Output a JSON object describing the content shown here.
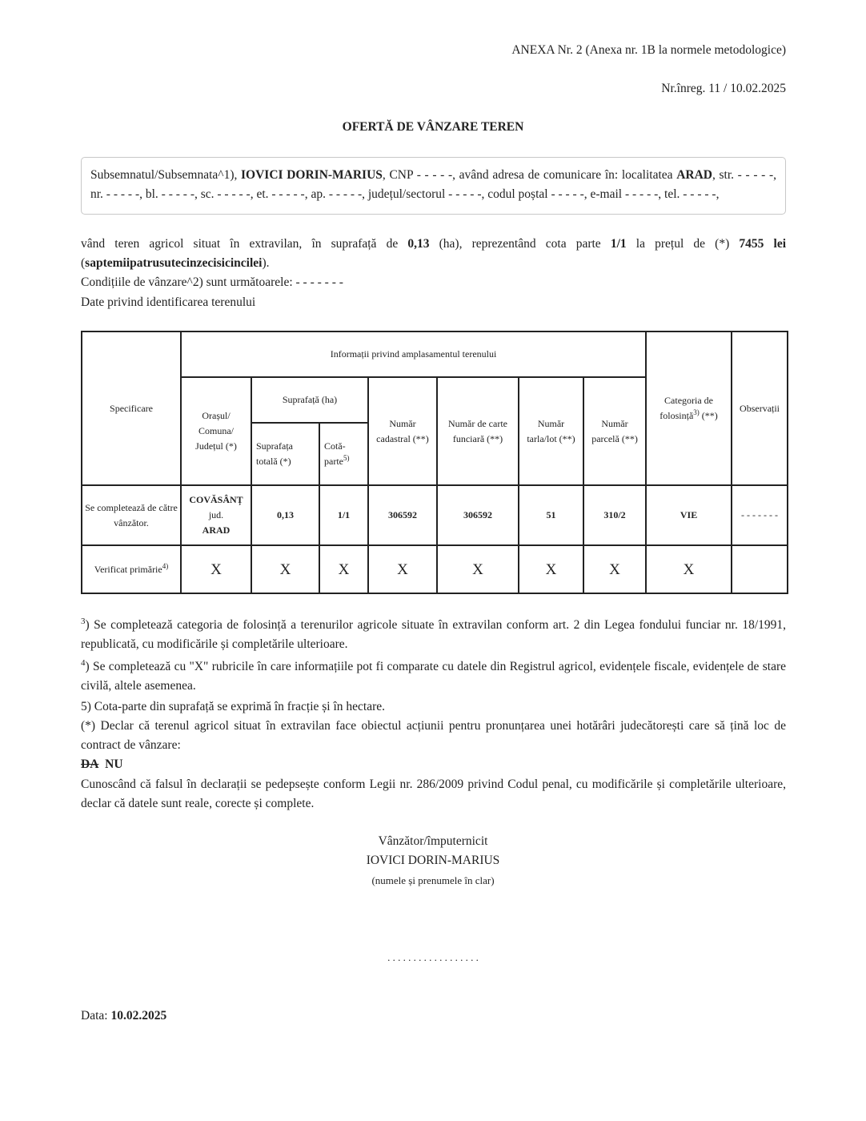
{
  "header": {
    "annex": "ANEXA Nr. 2 (Anexa nr. 1B la normele metodologice)",
    "registration": "Nr.înreg. 11 / 10.02.2025",
    "title": "OFERTĂ DE VÂNZARE TEREN"
  },
  "seller_box": {
    "t1": "Subsemnatul/Subsemnata^1), ",
    "name": "IOVICI DORIN-MARIUS",
    "t2": ", CNP - - - - -, având adresa de comunicare în: localitatea ",
    "locality": "ARAD",
    "t3": ", str. - - - - -, nr. - - - - -, bl. - - - - -, sc. - - - - -, et. - - - - -, ap. - - - - -, județul/sectorul - - - - -, codul poștal - - - - -, e-mail - - - - -, tel. - - - - -,"
  },
  "offer": {
    "t1": "vând teren agricol situat în extravilan, în suprafață de ",
    "area": "0,13",
    "t2": " (ha), reprezentând cota parte ",
    "share": "1/1",
    "t3": " la prețul de (*) ",
    "price": "7455 lei",
    "t4": " (",
    "price_words": "saptemiipatrusutecinzecisicincilei",
    "t5": ").",
    "conditions": "Condițiile de vânzare^2) sunt următoarele: - - - - - - -",
    "identification": "Date privind identificarea terenului"
  },
  "table": {
    "specificare": "Specificare",
    "info_header": "Informații privind amplasamentul terenului",
    "oras": "Orașul/ Comuna/ Județul (*)",
    "suprafata": "Suprafață (ha)",
    "suprafata_totala": "Suprafața totală (*)",
    "cota": "Cotă-parte",
    "cota_sup": "5)",
    "cadastral": "Număr cadastral (**)",
    "carte": "Număr de carte funciară (**)",
    "tarla": "Număr tarla/lot (**)",
    "parcela": "Număr parcelă (**)",
    "categoria": "Categoria de folosință",
    "categoria_sup": "3)",
    "categoria_tail": " (**)",
    "observatii": "Observații",
    "row1": {
      "label": "Se completează de către vânzător.",
      "locality": "COVĂSÂNȚ",
      "jud": "jud.",
      "county": "ARAD",
      "area": "0,13",
      "share": "1/1",
      "cadastral": "306592",
      "carte": "306592",
      "tarla": "51",
      "parcela": "310/2",
      "categoria": "VIE",
      "observatii": "- - - - - - -"
    },
    "row2": {
      "label": "Verificat primărie",
      "label_sup": "4)",
      "marks": [
        "X",
        "X",
        "X",
        "X",
        "X",
        "X",
        "X",
        "X"
      ]
    }
  },
  "footnotes": {
    "f3_sup": "3",
    "f3": ") Se completează categoria de folosință a terenurilor agricole situate în extravilan conform art. 2 din Legea fondului funciar nr. 18/1991, republicată, cu modificările și completările ulterioare.",
    "f4_sup": "4",
    "f4": ") Se completează cu \"X\" rubricile în care informațiile pot fi comparate cu datele din Registrul agricol, evidențele fiscale, evidențele de stare civilă, altele asemenea.",
    "f5": "5) Cota-parte din suprafață se exprimă în fracție și în hectare.",
    "declar": "(*) Declar că terenul agricol situat în extravilan face obiectul acțiunii pentru pronunțarea unei hotărâri judecătorești care să țină loc de contract de vânzare:",
    "da": "DA",
    "nu": "NU",
    "cunoscand": "Cunoscând că falsul în declarații se pedepsește conform Legii nr. 286/2009 privind Codul penal, cu modificările și completările ulterioare, declar că datele sunt reale, corecte și complete."
  },
  "signature": {
    "role": "Vânzător/împuternicit",
    "name": "IOVICI DORIN-MARIUS",
    "hint": "(numele și prenumele în clar)",
    "dots": ". . . . . . . . . . . . . . . . . ."
  },
  "date": {
    "label": "Data: ",
    "value": "10.02.2025"
  }
}
